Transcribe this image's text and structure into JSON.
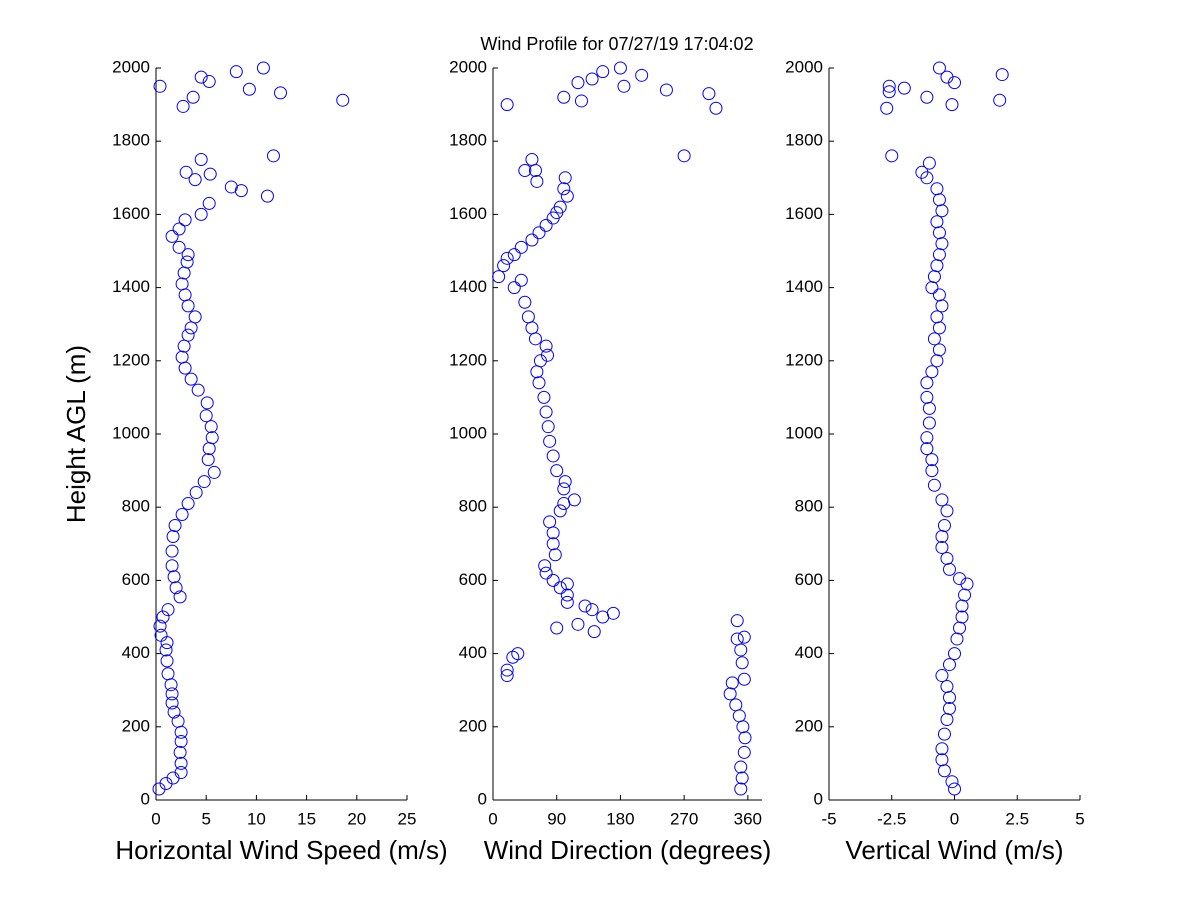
{
  "chart_data": [
    {
      "type": "scatter",
      "title": "Wind Profile for  07/27/19 17:04:02",
      "xlabel": "Horizontal Wind Speed (m/s)",
      "ylabel": "Height AGL (m)",
      "color": "#0000ff",
      "xlim": [
        0,
        25
      ],
      "xticks": [
        0,
        5,
        10,
        15,
        20,
        25
      ],
      "ylim": [
        0,
        2000
      ],
      "yticks": [
        0,
        200,
        400,
        600,
        800,
        1000,
        1200,
        1400,
        1600,
        1800,
        2000
      ],
      "x": [
        0.3,
        1.0,
        1.7,
        2.5,
        2.5,
        2.4,
        2.5,
        2.5,
        2.2,
        1.8,
        1.6,
        1.6,
        1.5,
        1.2,
        1.1,
        1.0,
        1.1,
        0.5,
        0.4,
        0.7,
        1.2,
        2.4,
        2.0,
        1.8,
        1.6,
        1.6,
        1.7,
        1.9,
        2.6,
        3.2,
        4.0,
        4.8,
        5.8,
        5.2,
        5.3,
        5.6,
        5.5,
        5.0,
        5.1,
        4.2,
        3.5,
        2.9,
        2.6,
        2.8,
        3.2,
        3.5,
        3.9,
        3.2,
        2.9,
        2.6,
        2.8,
        3.1,
        3.2,
        2.3,
        1.6,
        2.3,
        2.9,
        4.5,
        5.3,
        8.5,
        7.5,
        11.1,
        5.4,
        3.0,
        3.9,
        4.5,
        11.7,
        0.4,
        2.7,
        3.7,
        18.6,
        12.4,
        9.3,
        5.3,
        4.5,
        8.0,
        10.7
      ],
      "values": [
        30,
        45,
        60,
        75,
        100,
        130,
        160,
        185,
        215,
        240,
        265,
        290,
        315,
        345,
        380,
        410,
        430,
        450,
        475,
        500,
        520,
        555,
        580,
        610,
        640,
        680,
        720,
        750,
        780,
        810,
        840,
        870,
        895,
        930,
        960,
        990,
        1020,
        1050,
        1085,
        1120,
        1150,
        1180,
        1210,
        1240,
        1270,
        1290,
        1320,
        1350,
        1380,
        1410,
        1440,
        1470,
        1490,
        1510,
        1540,
        1560,
        1585,
        1600,
        1630,
        1665,
        1675,
        1650,
        1710,
        1715,
        1695,
        1750,
        1760,
        1950,
        1895,
        1920,
        1912,
        1932,
        1942,
        1963,
        1975,
        1990,
        2000
      ]
    },
    {
      "type": "scatter",
      "xlabel": "Wind Direction (degrees)",
      "color": "#0000ff",
      "xlim": [
        0,
        380
      ],
      "xticks": [
        0,
        90,
        180,
        270,
        360
      ],
      "ylim": [
        0,
        2000
      ],
      "yticks": [
        0,
        200,
        400,
        600,
        800,
        1000,
        1200,
        1400,
        1600,
        1800,
        2000
      ],
      "x": [
        350,
        352,
        350,
        355,
        356,
        353,
        348,
        343,
        335,
        338,
        355,
        352,
        350,
        355,
        345,
        345,
        20,
        20,
        28,
        35,
        90,
        143,
        120,
        170,
        155,
        130,
        140,
        105,
        105,
        105,
        95,
        85,
        75,
        73,
        88,
        85,
        85,
        80,
        95,
        100,
        115,
        100,
        102,
        90,
        85,
        80,
        78,
        75,
        72,
        65,
        62,
        67,
        77,
        75,
        60,
        55,
        50,
        45,
        30,
        40,
        8,
        15,
        20,
        30,
        40,
        55,
        65,
        75,
        85,
        90,
        95,
        105,
        100,
        102,
        62,
        60,
        45,
        55,
        270,
        20,
        100,
        125,
        140,
        120,
        155,
        180,
        210,
        185,
        245,
        305,
        315
      ],
      "values": [
        30,
        60,
        90,
        130,
        170,
        200,
        230,
        260,
        290,
        320,
        330,
        375,
        410,
        445,
        440,
        490,
        340,
        355,
        390,
        400,
        470,
        460,
        480,
        510,
        500,
        530,
        520,
        540,
        560,
        590,
        580,
        600,
        620,
        640,
        670,
        700,
        730,
        760,
        790,
        810,
        820,
        850,
        870,
        900,
        940,
        980,
        1020,
        1060,
        1100,
        1140,
        1170,
        1200,
        1215,
        1240,
        1260,
        1290,
        1320,
        1360,
        1400,
        1420,
        1430,
        1460,
        1480,
        1490,
        1510,
        1530,
        1550,
        1570,
        1590,
        1605,
        1620,
        1650,
        1670,
        1700,
        1690,
        1720,
        1720,
        1750,
        1760,
        1900,
        1920,
        1910,
        1970,
        1960,
        1990,
        2000,
        1980,
        1950,
        1940,
        1930,
        1890
      ]
    },
    {
      "type": "scatter",
      "xlabel": "Vertical Wind (m/s)",
      "color": "#0000ff",
      "xlim": [
        -5,
        5
      ],
      "xticks": [
        -5,
        -2.5,
        0,
        2.5,
        5
      ],
      "ylim": [
        0,
        2000
      ],
      "yticks": [
        0,
        200,
        400,
        600,
        800,
        1000,
        1200,
        1400,
        1600,
        1800,
        2000
      ],
      "x": [
        0,
        -0.1,
        -0.4,
        -0.5,
        -0.5,
        -0.4,
        -0.3,
        -0.2,
        -0.2,
        -0.3,
        -0.5,
        -0.2,
        0,
        0.1,
        0.2,
        0.3,
        0.3,
        0.4,
        0.5,
        0.2,
        -0.2,
        -0.3,
        -0.5,
        -0.5,
        -0.4,
        -0.3,
        -0.5,
        -0.8,
        -0.9,
        -0.9,
        -1.1,
        -1.1,
        -1.0,
        -1.0,
        -1.1,
        -1.1,
        -0.9,
        -0.7,
        -0.6,
        -0.8,
        -0.6,
        -0.7,
        -0.5,
        -0.6,
        -0.9,
        -0.8,
        -0.7,
        -0.6,
        -0.5,
        -0.6,
        -0.7,
        -0.5,
        -0.6,
        -0.7,
        -1.1,
        -1.3,
        -1.0,
        -2.5,
        -2.7,
        -2.6,
        -2.6,
        -2.0,
        -1.1,
        -0.6,
        -0.3,
        0,
        -0.1,
        1.8,
        1.9
      ],
      "values": [
        30,
        50,
        80,
        110,
        140,
        180,
        220,
        250,
        280,
        310,
        340,
        370,
        400,
        440,
        470,
        500,
        530,
        560,
        590,
        605,
        630,
        660,
        690,
        720,
        750,
        790,
        820,
        860,
        900,
        930,
        960,
        990,
        1030,
        1070,
        1100,
        1140,
        1170,
        1200,
        1230,
        1260,
        1290,
        1320,
        1350,
        1380,
        1400,
        1430,
        1460,
        1490,
        1520,
        1550,
        1580,
        1610,
        1640,
        1670,
        1700,
        1715,
        1740,
        1760,
        1890,
        1935,
        1950,
        1945,
        1920,
        2000,
        1975,
        1960,
        1900,
        1912,
        1982
      ]
    }
  ]
}
